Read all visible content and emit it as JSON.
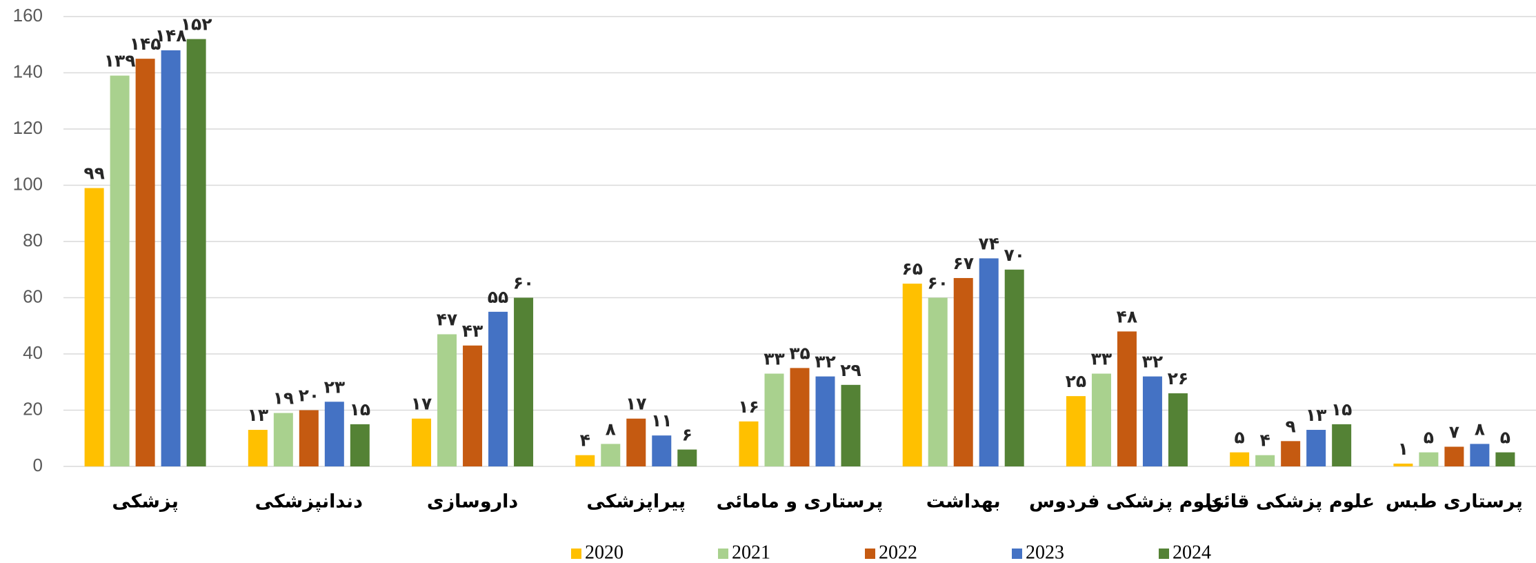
{
  "chart_data": {
    "type": "bar",
    "categories": [
      "پزشکی",
      "دندانپزشکی",
      "داروسازی",
      "پیراپزشکی",
      "پرستاری و مامائی",
      "بهداشت",
      "علوم پزشکی فردوس",
      "علوم پزشکی قائن",
      "پرستاری طبس"
    ],
    "series": [
      {
        "name": "2020",
        "color": "#FFC000",
        "values": [
          99,
          13,
          17,
          4,
          16,
          65,
          25,
          5,
          1
        ],
        "value_labels": [
          "۹۹",
          "۱۳",
          "۱۷",
          "۴",
          "۱۶",
          "۶۵",
          "۲۵",
          "۵",
          "۱"
        ]
      },
      {
        "name": "2021",
        "color": "#A9D18E",
        "values": [
          139,
          19,
          47,
          8,
          33,
          60,
          33,
          4,
          5
        ],
        "value_labels": [
          "۱۳۹",
          "۱۹",
          "۴۷",
          "۸",
          "۳۳",
          "۶۰",
          "۳۳",
          "۴",
          "۵"
        ]
      },
      {
        "name": "2022",
        "color": "#C55A11",
        "values": [
          145,
          20,
          43,
          17,
          35,
          67,
          48,
          9,
          7
        ],
        "value_labels": [
          "۱۴۵",
          "۲۰",
          "۴۳",
          "۱۷",
          "۳۵",
          "۶۷",
          "۴۸",
          "۹",
          "۷"
        ]
      },
      {
        "name": "2023",
        "color": "#4472C4",
        "values": [
          148,
          23,
          55,
          11,
          32,
          74,
          32,
          13,
          8
        ],
        "value_labels": [
          "۱۴۸",
          "۲۳",
          "۵۵",
          "۱۱",
          "۳۲",
          "۷۴",
          "۳۲",
          "۱۳",
          "۸"
        ]
      },
      {
        "name": "2024",
        "color": "#548235",
        "values": [
          152,
          15,
          60,
          6,
          29,
          70,
          26,
          15,
          5
        ],
        "value_labels": [
          "۱۵۲",
          "۱۵",
          "۶۰",
          "۶",
          "۲۹",
          "۷۰",
          "۲۶",
          "۱۵",
          "۵"
        ]
      }
    ],
    "ylim": [
      0,
      160
    ],
    "yticks": [
      0,
      20,
      40,
      60,
      80,
      100,
      120,
      140,
      160
    ],
    "grid": true,
    "legend": "bottom"
  }
}
